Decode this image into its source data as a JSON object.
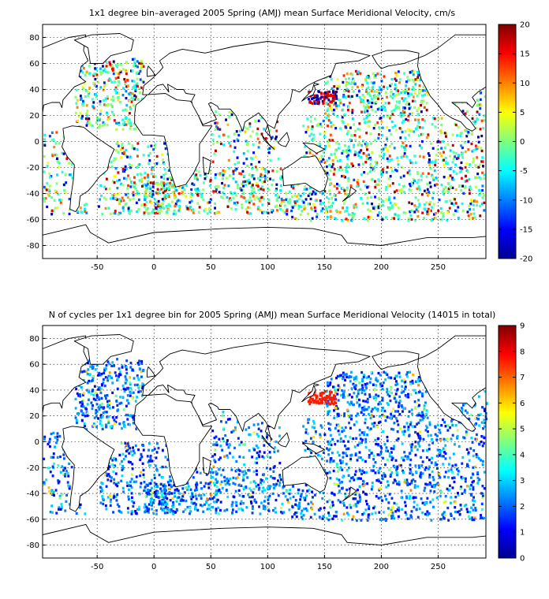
{
  "chart_data": [
    {
      "type": "heatmap",
      "title": "1x1 degree bin–averaged 2005 Spring (AMJ) mean Surface Meridional Velocity, cm/s",
      "xlabel": "",
      "ylabel": "",
      "xlim": [
        -98,
        292
      ],
      "ylim": [
        -90,
        90
      ],
      "xticks": [
        -50,
        0,
        50,
        100,
        150,
        200,
        250
      ],
      "yticks": [
        -80,
        -60,
        -40,
        -20,
        0,
        20,
        40,
        60,
        80
      ],
      "grid": true,
      "colorbar": {
        "range": [
          -20,
          20
        ],
        "ticks": [
          -20,
          -15,
          -10,
          -5,
          0,
          5,
          10,
          15,
          20
        ],
        "colormap": "jet",
        "placement": "right"
      },
      "notes_data": "Sparse bins scattered over the global ocean; values span roughly -20 to 20 cm/s with high magnitudes near the Kuroshio (about 140-160E, 30-40N) and equatorial bands."
    },
    {
      "type": "heatmap",
      "title": "N of cycles per 1x1 degree bin for 2005 Spring (AMJ) mean Surface Meridional Velocity (14015 in total)",
      "xlabel": "",
      "ylabel": "",
      "xlim": [
        -98,
        292
      ],
      "ylim": [
        -90,
        90
      ],
      "xticks": [
        -50,
        0,
        50,
        100,
        150,
        200,
        250
      ],
      "yticks": [
        -80,
        -60,
        -40,
        -20,
        0,
        20,
        40,
        60,
        80
      ],
      "grid": true,
      "total_cycles": 14015,
      "colorbar": {
        "range": [
          0,
          9
        ],
        "ticks": [
          0,
          1,
          2,
          3,
          4,
          5,
          6,
          7,
          8,
          9
        ],
        "colormap": "jet",
        "placement": "right"
      }
    }
  ]
}
